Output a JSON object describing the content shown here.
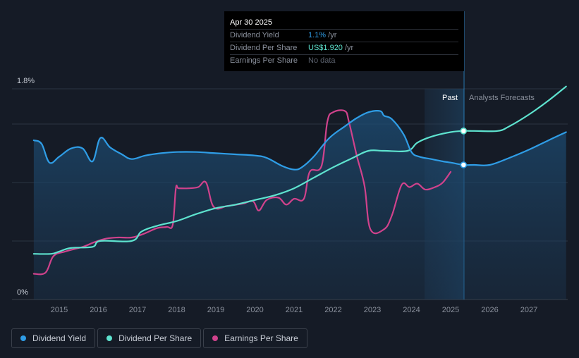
{
  "chart_data": {
    "type": "line",
    "x_labels": [
      "2015",
      "2016",
      "2017",
      "2018",
      "2019",
      "2020",
      "2021",
      "2022",
      "2023",
      "2024",
      "2025",
      "2026",
      "2027"
    ],
    "y_labels": {
      "top": "1.8%",
      "bottom": "0%"
    },
    "ylim_percent": [
      0,
      1.8
    ],
    "region_labels": {
      "past": "Past",
      "forecast": "Analysts Forecasts"
    },
    "forecast_start": 2025.33,
    "series": [
      {
        "name": "Dividend Yield",
        "color": "#2f9de6",
        "unit": "percent",
        "points": [
          [
            2014.35,
            1.36
          ],
          [
            2014.55,
            1.33
          ],
          [
            2014.75,
            1.17
          ],
          [
            2015.0,
            1.22
          ],
          [
            2015.3,
            1.29
          ],
          [
            2015.6,
            1.29
          ],
          [
            2015.85,
            1.18
          ],
          [
            2016.05,
            1.38
          ],
          [
            2016.3,
            1.3
          ],
          [
            2016.6,
            1.24
          ],
          [
            2016.85,
            1.2
          ],
          [
            2017.2,
            1.23
          ],
          [
            2017.6,
            1.25
          ],
          [
            2018.0,
            1.26
          ],
          [
            2018.5,
            1.26
          ],
          [
            2019.0,
            1.25
          ],
          [
            2019.5,
            1.24
          ],
          [
            2020.0,
            1.23
          ],
          [
            2020.3,
            1.21
          ],
          [
            2020.7,
            1.14
          ],
          [
            2021.0,
            1.11
          ],
          [
            2021.2,
            1.13
          ],
          [
            2021.5,
            1.22
          ],
          [
            2021.9,
            1.38
          ],
          [
            2022.3,
            1.48
          ],
          [
            2022.6,
            1.55
          ],
          [
            2022.9,
            1.6
          ],
          [
            2023.2,
            1.61
          ],
          [
            2023.3,
            1.57
          ],
          [
            2023.5,
            1.54
          ],
          [
            2023.8,
            1.41
          ],
          [
            2024.0,
            1.26
          ],
          [
            2024.2,
            1.22
          ],
          [
            2024.5,
            1.2
          ],
          [
            2024.8,
            1.18
          ],
          [
            2025.0,
            1.17
          ],
          [
            2025.33,
            1.15
          ],
          [
            2025.6,
            1.15
          ],
          [
            2026.0,
            1.15
          ],
          [
            2026.5,
            1.21
          ],
          [
            2027.0,
            1.28
          ],
          [
            2027.5,
            1.36
          ],
          [
            2027.95,
            1.43
          ]
        ]
      },
      {
        "name": "Dividend Per Share",
        "color": "#5ee3cf",
        "unit": "relative",
        "points": [
          [
            2014.35,
            0.39
          ],
          [
            2014.8,
            0.39
          ],
          [
            2015.0,
            0.41
          ],
          [
            2015.3,
            0.44
          ],
          [
            2015.85,
            0.45
          ],
          [
            2016.05,
            0.5
          ],
          [
            2016.85,
            0.5
          ],
          [
            2017.1,
            0.58
          ],
          [
            2017.5,
            0.63
          ],
          [
            2018.0,
            0.67
          ],
          [
            2018.5,
            0.73
          ],
          [
            2019.0,
            0.78
          ],
          [
            2019.5,
            0.81
          ],
          [
            2020.0,
            0.85
          ],
          [
            2020.5,
            0.89
          ],
          [
            2021.0,
            0.95
          ],
          [
            2021.5,
            1.04
          ],
          [
            2022.0,
            1.13
          ],
          [
            2022.5,
            1.21
          ],
          [
            2022.9,
            1.27
          ],
          [
            2023.3,
            1.27
          ],
          [
            2023.9,
            1.27
          ],
          [
            2024.15,
            1.34
          ],
          [
            2024.5,
            1.39
          ],
          [
            2025.0,
            1.43
          ],
          [
            2025.33,
            1.44
          ],
          [
            2025.6,
            1.44
          ],
          [
            2026.2,
            1.44
          ],
          [
            2026.5,
            1.48
          ],
          [
            2027.0,
            1.58
          ],
          [
            2027.5,
            1.7
          ],
          [
            2027.95,
            1.82
          ]
        ]
      },
      {
        "name": "Earnings Per Share",
        "color": "#d0428c",
        "unit": "relative",
        "points": [
          [
            2014.35,
            0.22
          ],
          [
            2014.65,
            0.23
          ],
          [
            2014.85,
            0.37
          ],
          [
            2015.15,
            0.41
          ],
          [
            2015.6,
            0.45
          ],
          [
            2015.9,
            0.49
          ],
          [
            2016.2,
            0.52
          ],
          [
            2016.5,
            0.53
          ],
          [
            2016.85,
            0.53
          ],
          [
            2017.15,
            0.56
          ],
          [
            2017.5,
            0.61
          ],
          [
            2017.75,
            0.62
          ],
          [
            2017.9,
            0.64
          ],
          [
            2017.98,
            0.95
          ],
          [
            2018.05,
            0.95
          ],
          [
            2018.3,
            0.95
          ],
          [
            2018.55,
            0.96
          ],
          [
            2018.75,
            1.0
          ],
          [
            2018.95,
            0.79
          ],
          [
            2019.3,
            0.8
          ],
          [
            2019.7,
            0.82
          ],
          [
            2019.95,
            0.84
          ],
          [
            2020.1,
            0.76
          ],
          [
            2020.3,
            0.85
          ],
          [
            2020.6,
            0.87
          ],
          [
            2020.8,
            0.81
          ],
          [
            2021.0,
            0.86
          ],
          [
            2021.25,
            0.86
          ],
          [
            2021.4,
            1.09
          ],
          [
            2021.7,
            1.14
          ],
          [
            2021.85,
            1.52
          ],
          [
            2022.0,
            1.6
          ],
          [
            2022.3,
            1.61
          ],
          [
            2022.4,
            1.52
          ],
          [
            2022.6,
            1.23
          ],
          [
            2022.8,
            0.97
          ],
          [
            2022.95,
            0.6
          ],
          [
            2023.3,
            0.6
          ],
          [
            2023.5,
            0.72
          ],
          [
            2023.75,
            0.98
          ],
          [
            2023.95,
            0.96
          ],
          [
            2024.15,
            0.99
          ],
          [
            2024.35,
            0.94
          ],
          [
            2024.6,
            0.96
          ],
          [
            2024.8,
            1.0
          ],
          [
            2025.0,
            1.09
          ]
        ]
      }
    ],
    "marker_points": [
      {
        "series": "Dividend Per Share",
        "x": 2025.33,
        "y": 1.44
      },
      {
        "series": "Dividend Yield",
        "x": 2025.33,
        "y": 1.15
      }
    ]
  },
  "tooltip": {
    "date": "Apr 30 2025",
    "rows": [
      {
        "label": "Dividend Yield",
        "value": "1.1%",
        "unit": " /yr",
        "kind": "yield"
      },
      {
        "label": "Dividend Per Share",
        "value": "US$1.920",
        "unit": " /yr",
        "kind": "dps"
      },
      {
        "label": "Earnings Per Share",
        "value": "No data",
        "unit": "",
        "kind": "nodata"
      }
    ]
  },
  "legend": [
    {
      "label": "Dividend Yield",
      "color": "#2f9de6"
    },
    {
      "label": "Dividend Per Share",
      "color": "#5ee3cf"
    },
    {
      "label": "Earnings Per Share",
      "color": "#d0428c"
    }
  ]
}
